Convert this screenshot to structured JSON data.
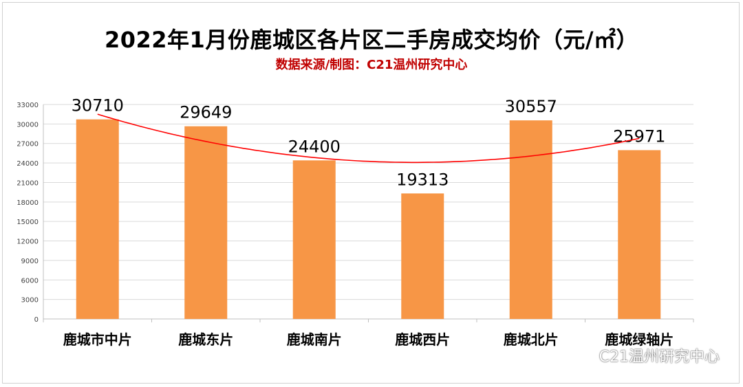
{
  "header": {
    "title": "2022年1月份鹿城区各片区二手房成交均价（元/㎡）",
    "subtitle": "数据来源/制图：C21温州研究中心"
  },
  "watermark": {
    "text": "C21温州研究中心",
    "icon": "wechat-icon"
  },
  "colors": {
    "bar": "#f79646",
    "trend": "#ff0000",
    "grid": "#d9d9d9",
    "subtitle": "#c00000"
  },
  "chart_data": {
    "type": "bar",
    "title": "2022年1月份鹿城区各片区二手房成交均价（元/㎡）",
    "subtitle": "数据来源/制图：C21温州研究中心",
    "categories": [
      "鹿城市中片",
      "鹿城东片",
      "鹿城南片",
      "鹿城西片",
      "鹿城北片",
      "鹿城绿轴片"
    ],
    "values": [
      30710,
      29649,
      24400,
      19313,
      30557,
      25971
    ],
    "ylim": [
      0,
      33000
    ],
    "yticks": [
      0,
      3000,
      6000,
      9000,
      12000,
      15000,
      18000,
      21000,
      24000,
      27000,
      30000,
      33000
    ],
    "xlabel": "",
    "ylabel": "",
    "grid": true,
    "data_labels": true,
    "trendline": "polynomial"
  }
}
